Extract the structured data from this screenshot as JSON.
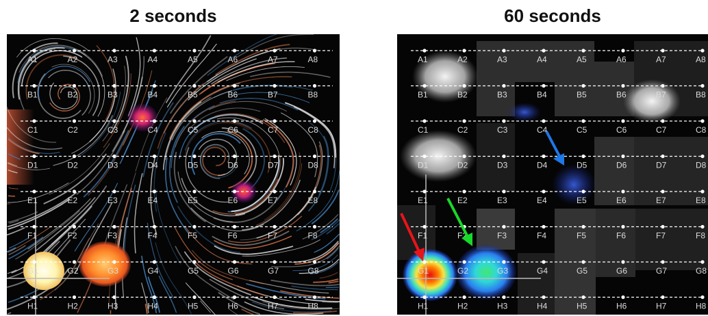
{
  "panels": [
    {
      "title": "2 seconds"
    },
    {
      "title": "60 seconds"
    }
  ],
  "grid": {
    "rows": [
      "A",
      "B",
      "C",
      "D",
      "E",
      "F",
      "G",
      "H"
    ],
    "cols": [
      "1",
      "2",
      "3",
      "4",
      "5",
      "6",
      "7",
      "8"
    ]
  },
  "colors": {
    "background": "#000000",
    "streamline": "#e8e8e8",
    "streamline_blue": "#4a8fd1",
    "streamline_orange": "#d9764a",
    "red_arrow": "#e8141a",
    "green_arrow": "#18d82a",
    "blue_arrow": "#1e78e6"
  },
  "arrows_icons": [
    "red-arrow-icon",
    "green-arrow-icon",
    "blue-arrow-icon"
  ]
}
